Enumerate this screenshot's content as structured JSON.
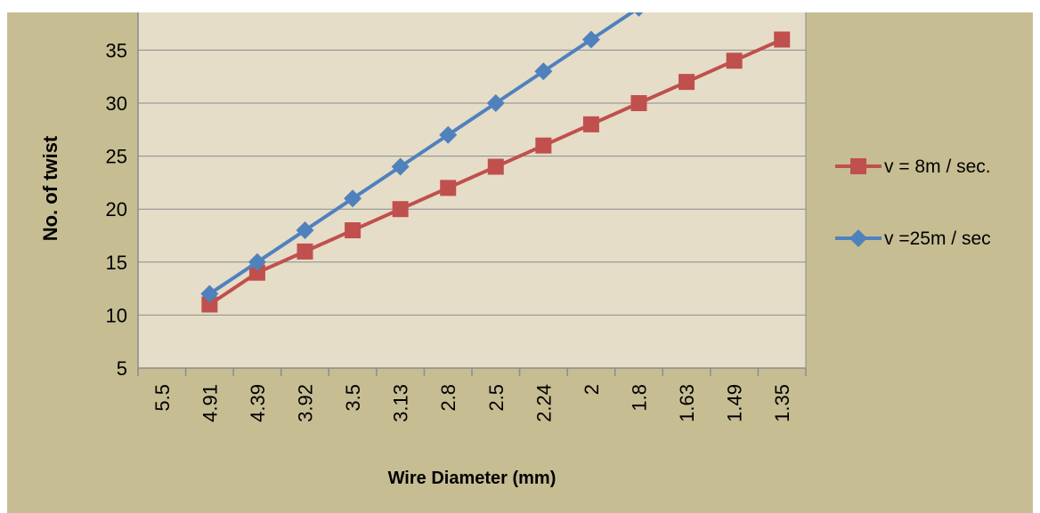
{
  "chart_data": {
    "type": "line",
    "xlabel": "Wire Diameter (mm)",
    "ylabel": "No. of twist",
    "categories": [
      "5.5",
      "4.91",
      "4.39",
      "3.92",
      "3.5",
      "3.13",
      "2.8",
      "2.5",
      "2.24",
      "2",
      "1.8",
      "1.63",
      "1.49",
      "1.35"
    ],
    "y_ticks": [
      "5",
      "10",
      "15",
      "20",
      "25",
      "30",
      "35"
    ],
    "ylim": [
      5,
      38
    ],
    "grid": true,
    "legend_position": "right",
    "series": [
      {
        "name": "v = 8m / sec.",
        "color": "#c0504d",
        "marker": "square",
        "values": [
          null,
          11,
          14,
          16,
          18,
          20,
          22,
          24,
          26,
          28,
          30,
          32,
          34,
          36
        ]
      },
      {
        "name": "v =25m / sec",
        "color": "#4f81bd",
        "marker": "diamond",
        "values": [
          null,
          12,
          15,
          18,
          21,
          24,
          27,
          30,
          33,
          36,
          39,
          null,
          null,
          null
        ]
      }
    ],
    "colors": {
      "background": "#c6bd93",
      "plot_area": "#e5ddc8",
      "gridline": "#8c8c8c"
    }
  }
}
